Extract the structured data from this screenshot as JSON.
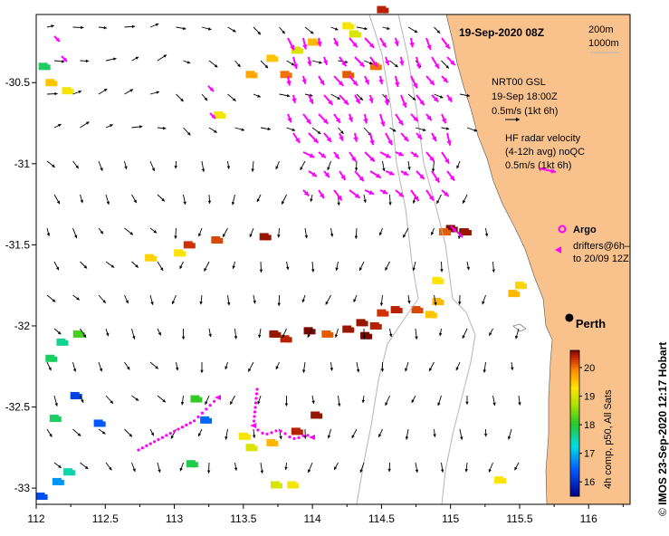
{
  "map_title": "19-Sep-2020 08Z",
  "isobath_legend": [
    "200m",
    "1000m"
  ],
  "axes": {
    "lon_min": 112,
    "lon_max": 116.3,
    "lat_min": -33.1,
    "lat_max": -30.08,
    "x_ticks": [
      "112",
      "112.5",
      "113",
      "113.5",
      "114",
      "114.5",
      "115",
      "115.5",
      "116"
    ],
    "y_ticks": [
      "-30.5",
      "-31",
      "-31.5",
      "-32",
      "-32.5",
      "-33"
    ]
  },
  "model_legend": {
    "lines": [
      "NRT00 GSL",
      "19-Sep 18:00Z",
      "0.5m/s (1kt 6h)"
    ],
    "arrow_color": "#000000"
  },
  "radar_legend": {
    "lines": [
      "HF radar velocity",
      "(4-12h avg) noQC",
      "0.5m/s (1kt 6h)"
    ],
    "arrow_color": "#ff00ff"
  },
  "argo_label": "Argo",
  "drifters_label": [
    "drifters@6h–",
    "to 20/09 12Z"
  ],
  "city": {
    "name": "Perth",
    "lon": 115.86,
    "lat": -31.95
  },
  "colorbar": {
    "label": "4h comp, p50, All Sats",
    "min": 15.5,
    "max": 20.6,
    "ticks": [
      "16",
      "17",
      "18",
      "19",
      "20"
    ]
  },
  "credit": {
    "symbol": "©",
    "text": "IMOS 23-Sep-2020 12:17 Hobart"
  },
  "colors": {
    "land": "#f9c28d",
    "isobath": "#b4b4b4",
    "radar": "#ff00ff",
    "drifter": "#ff00ff",
    "city_marker": "#000000"
  },
  "sst_patches": [
    {
      "lon": 112.05,
      "lat": -30.4,
      "temp": 17.8
    },
    {
      "lon": 112.1,
      "lat": -30.5,
      "temp": 19.5
    },
    {
      "lon": 112.22,
      "lat": -30.55,
      "temp": 19.2
    },
    {
      "lon": 112.18,
      "lat": -32.1,
      "temp": 17.6
    },
    {
      "lon": 112.3,
      "lat": -32.05,
      "temp": 18.2
    },
    {
      "lon": 112.1,
      "lat": -32.2,
      "temp": 17.8
    },
    {
      "lon": 112.28,
      "lat": -32.43,
      "temp": 16.2
    },
    {
      "lon": 112.13,
      "lat": -32.57,
      "temp": 17.8
    },
    {
      "lon": 112.23,
      "lat": -32.9,
      "temp": 17.5
    },
    {
      "lon": 112.15,
      "lat": -32.96,
      "temp": 16.8
    },
    {
      "lon": 112.03,
      "lat": -33.05,
      "temp": 16.3
    },
    {
      "lon": 112.45,
      "lat": -32.6,
      "temp": 16.4
    },
    {
      "lon": 113.15,
      "lat": -32.45,
      "temp": 18.1
    },
    {
      "lon": 113.12,
      "lat": -32.85,
      "temp": 17.9
    },
    {
      "lon": 113.22,
      "lat": -32.58,
      "temp": 16.5
    },
    {
      "lon": 113.1,
      "lat": -31.5,
      "temp": 20.3
    },
    {
      "lon": 112.82,
      "lat": -31.58,
      "temp": 19.4
    },
    {
      "lon": 113.03,
      "lat": -31.55,
      "temp": 19.3
    },
    {
      "lon": 113.3,
      "lat": -31.47,
      "temp": 20.2
    },
    {
      "lon": 113.32,
      "lat": -30.7,
      "temp": 19.2
    },
    {
      "lon": 113.55,
      "lat": -30.45,
      "temp": 19.7
    },
    {
      "lon": 113.7,
      "lat": -30.35,
      "temp": 19.5
    },
    {
      "lon": 113.8,
      "lat": -30.45,
      "temp": 20.0
    },
    {
      "lon": 113.88,
      "lat": -30.3,
      "temp": 19.0
    },
    {
      "lon": 114.0,
      "lat": -30.25,
      "temp": 19.6
    },
    {
      "lon": 114.25,
      "lat": -30.15,
      "temp": 19.2
    },
    {
      "lon": 114.3,
      "lat": -30.2,
      "temp": 19.0
    },
    {
      "lon": 114.25,
      "lat": -30.45,
      "temp": 20.1
    },
    {
      "lon": 114.5,
      "lat": -30.05,
      "temp": 20.4
    },
    {
      "lon": 113.65,
      "lat": -31.45,
      "temp": 20.5
    },
    {
      "lon": 113.72,
      "lat": -32.05,
      "temp": 20.5
    },
    {
      "lon": 113.8,
      "lat": -32.08,
      "temp": 20.4
    },
    {
      "lon": 113.97,
      "lat": -32.03,
      "temp": 20.6
    },
    {
      "lon": 114.1,
      "lat": -32.05,
      "temp": 20.1
    },
    {
      "lon": 114.25,
      "lat": -32.02,
      "temp": 20.5
    },
    {
      "lon": 114.35,
      "lat": -31.98,
      "temp": 20.5
    },
    {
      "lon": 114.45,
      "lat": -32.0,
      "temp": 20.4
    },
    {
      "lon": 114.5,
      "lat": -31.92,
      "temp": 20.3
    },
    {
      "lon": 114.6,
      "lat": -31.9,
      "temp": 20.4
    },
    {
      "lon": 114.75,
      "lat": -31.9,
      "temp": 20.2
    },
    {
      "lon": 114.38,
      "lat": -32.06,
      "temp": 20.6
    },
    {
      "lon": 114.9,
      "lat": -31.85,
      "temp": 19.6
    },
    {
      "lon": 114.85,
      "lat": -31.93,
      "temp": 19.5
    },
    {
      "lon": 114.9,
      "lat": -31.72,
      "temp": 19.3
    },
    {
      "lon": 115.5,
      "lat": -31.75,
      "temp": 19.4
    },
    {
      "lon": 115.45,
      "lat": -31.8,
      "temp": 19.6
    },
    {
      "lon": 113.5,
      "lat": -32.68,
      "temp": 19.2
    },
    {
      "lon": 113.55,
      "lat": -32.75,
      "temp": 19.0
    },
    {
      "lon": 113.7,
      "lat": -32.72,
      "temp": 19.6
    },
    {
      "lon": 113.73,
      "lat": -32.98,
      "temp": 19.0
    },
    {
      "lon": 113.85,
      "lat": -32.98,
      "temp": 19.2
    },
    {
      "lon": 113.88,
      "lat": -32.65,
      "temp": 20.4
    },
    {
      "lon": 114.02,
      "lat": -32.55,
      "temp": 20.5
    },
    {
      "lon": 114.45,
      "lat": -30.4,
      "temp": 20.0
    },
    {
      "lon": 115.35,
      "lat": -32.95,
      "temp": 19.3
    },
    {
      "lon": 115.0,
      "lat": -31.4,
      "temp": 20.6
    },
    {
      "lon": 115.1,
      "lat": -31.42,
      "temp": 20.5
    },
    {
      "lon": 114.95,
      "lat": -31.42,
      "temp": 20.1
    }
  ]
}
